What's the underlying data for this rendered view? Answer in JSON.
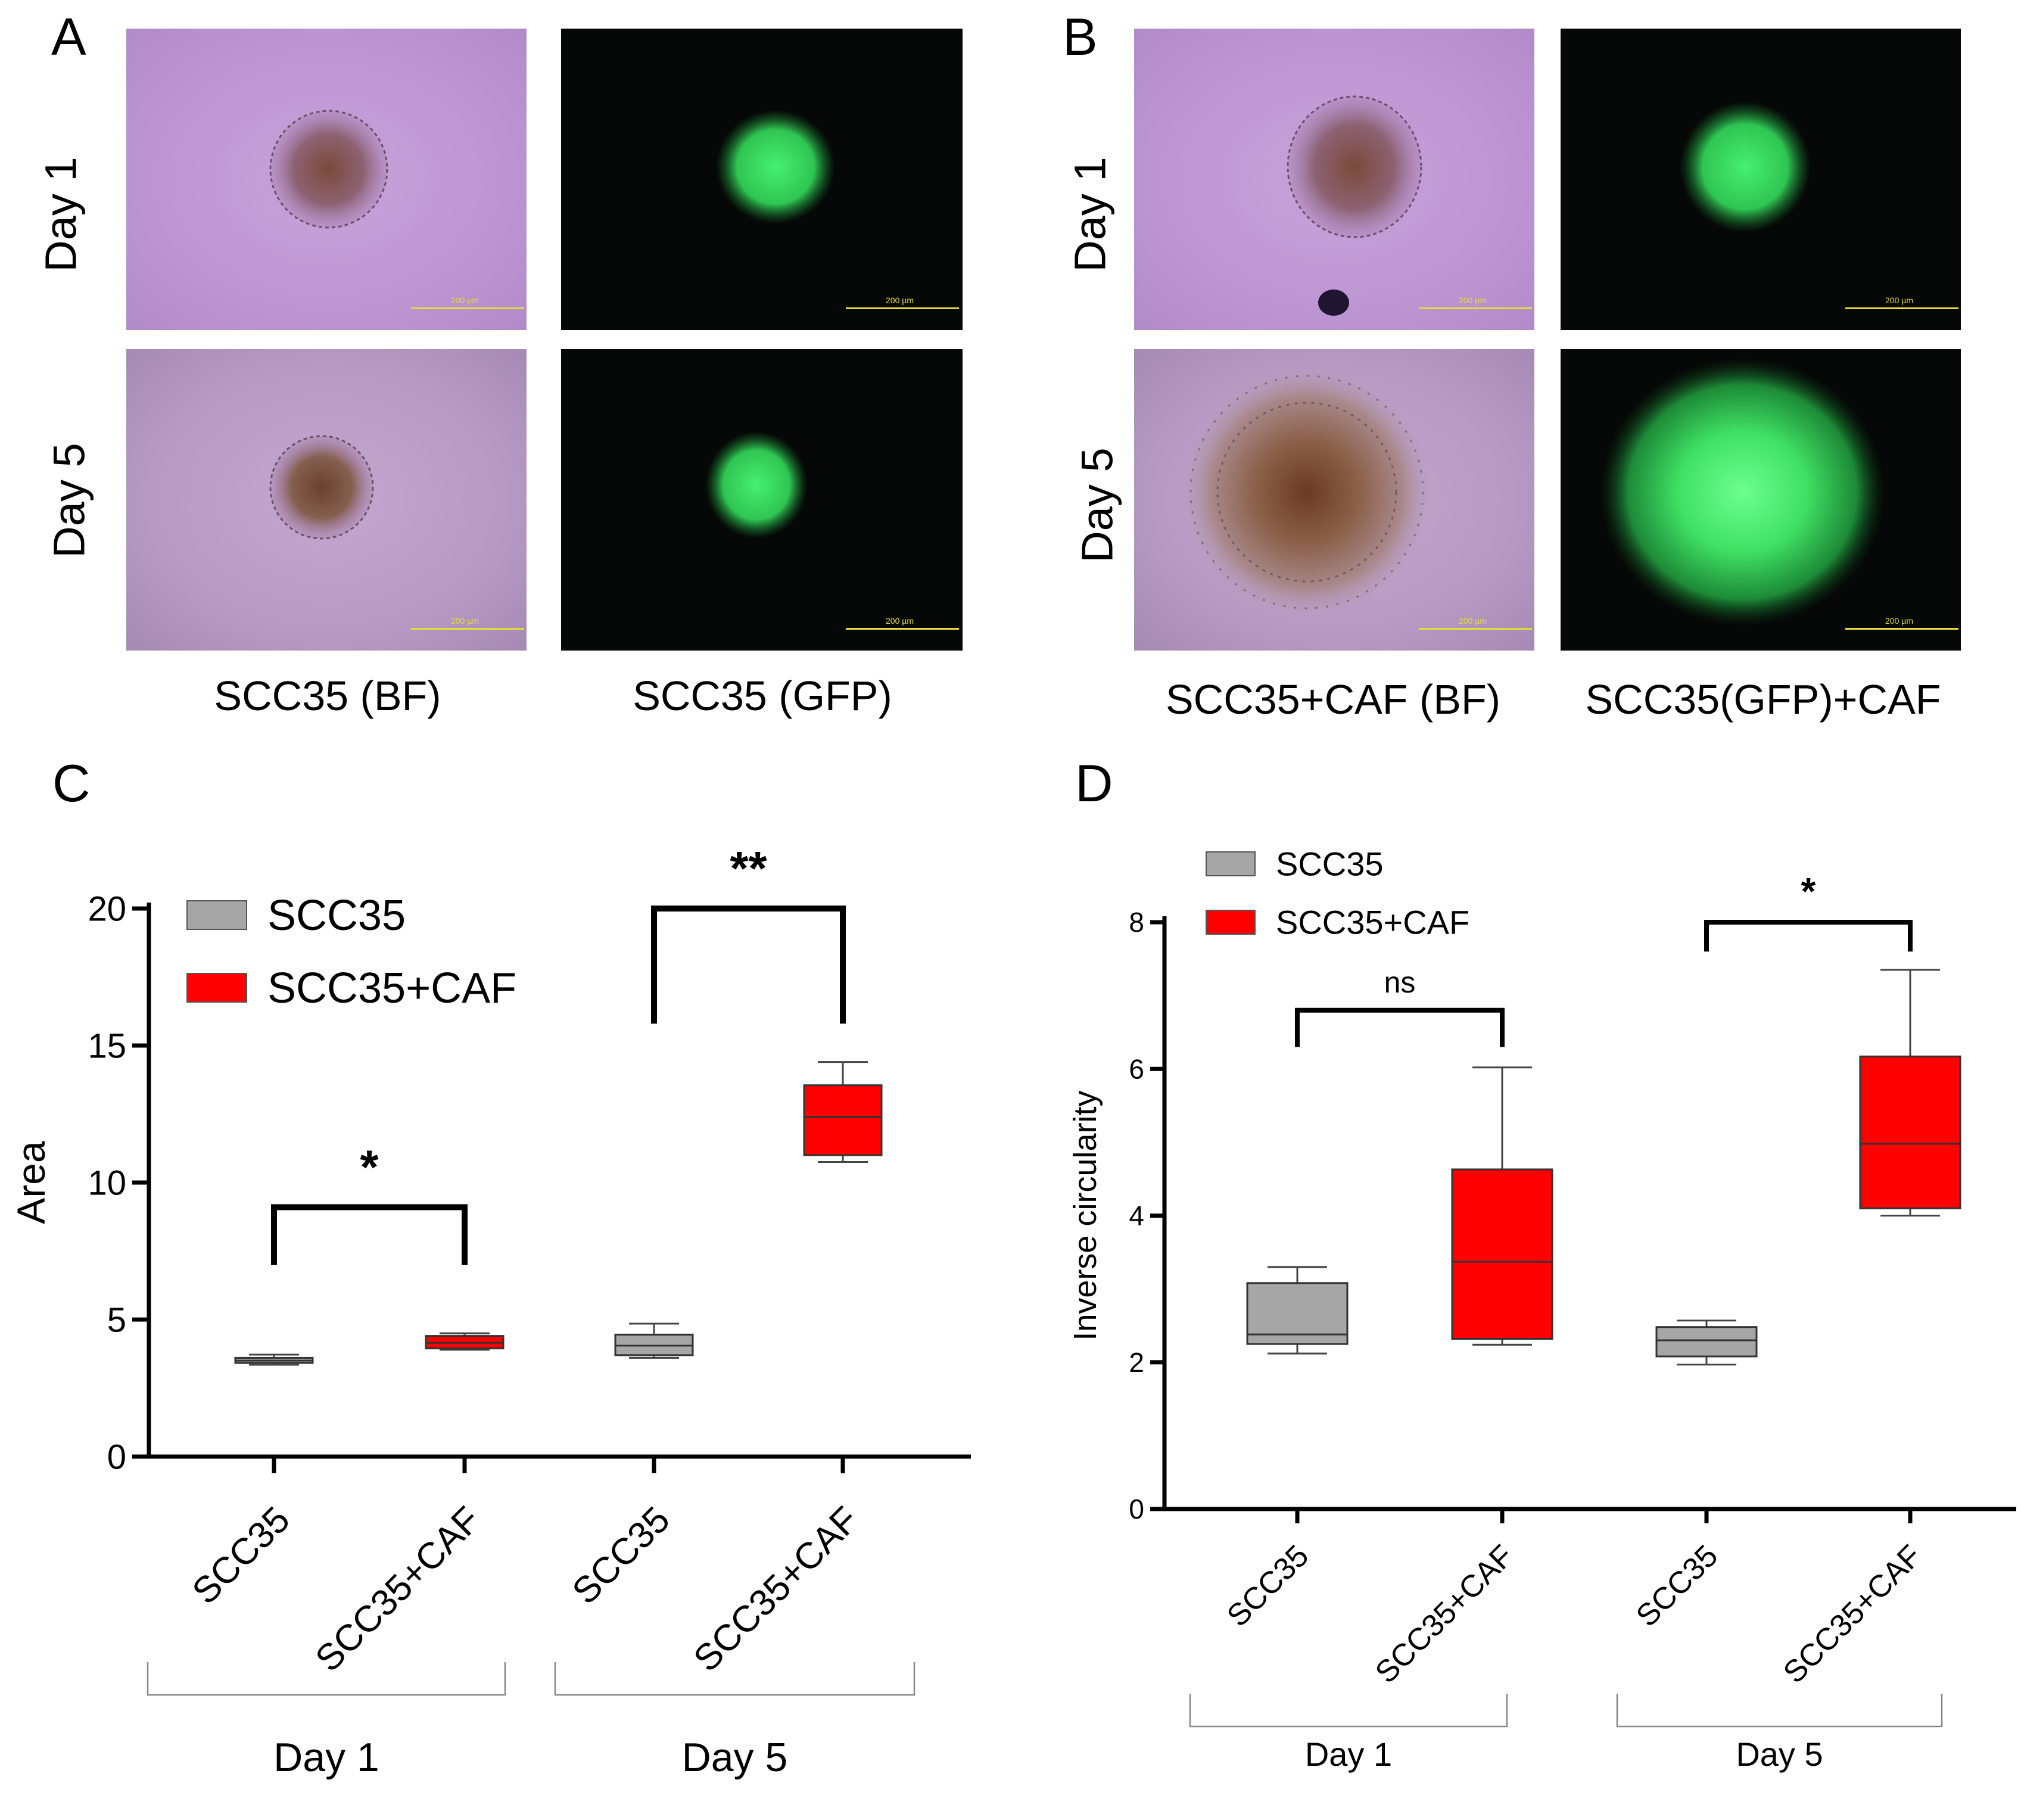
{
  "panels": {
    "A": {
      "letter": "A",
      "rows": [
        "Day 1",
        "Day 5"
      ],
      "columns": [
        "SCC35 (BF)",
        "SCC35 (GFP)"
      ],
      "scale_bar": "200 µm"
    },
    "B": {
      "letter": "B",
      "rows": [
        "Day 1",
        "Day 5"
      ],
      "columns": [
        "SCC35+CAF (BF)",
        "SCC35(GFP)+CAF"
      ],
      "scale_bar": "200 µm"
    }
  },
  "colors": {
    "scc35": "#a6a6a6",
    "scc35_caf": "#ff0000",
    "bf_bg": "#bf97d4",
    "gfp": "#33e05a"
  },
  "chart_data": [
    {
      "panel": "C",
      "type": "box",
      "ylabel": "Area",
      "ylim": [
        0,
        20
      ],
      "yticks": [
        0,
        5,
        10,
        15,
        20
      ],
      "legend": [
        {
          "name": "SCC35",
          "color": "#a6a6a6"
        },
        {
          "name": "SCC35+CAF",
          "color": "#ff0000"
        }
      ],
      "legend_position": "top-left",
      "categories": [
        "SCC35",
        "SCC35+CAF",
        "SCC35",
        "SCC35+CAF"
      ],
      "groups": [
        {
          "label": "Day 1",
          "members": [
            0,
            1
          ]
        },
        {
          "label": "Day 5",
          "members": [
            2,
            3
          ]
        }
      ],
      "boxes": [
        {
          "series": "SCC35",
          "min": 3.35,
          "q1": 3.42,
          "median": 3.5,
          "q3": 3.6,
          "max": 3.72
        },
        {
          "series": "SCC35+CAF",
          "min": 3.9,
          "q1": 3.95,
          "median": 4.15,
          "q3": 4.4,
          "max": 4.5
        },
        {
          "series": "SCC35",
          "min": 3.6,
          "q1": 3.7,
          "median": 4.05,
          "q3": 4.45,
          "max": 4.85
        },
        {
          "series": "SCC35+CAF",
          "min": 10.75,
          "q1": 11.0,
          "median": 12.4,
          "q3": 13.55,
          "max": 14.4
        }
      ],
      "significance": [
        {
          "from": 0,
          "to": 1,
          "label": "*"
        },
        {
          "from": 2,
          "to": 3,
          "label": "**"
        }
      ]
    },
    {
      "panel": "D",
      "type": "box",
      "ylabel": "Inverse circularity",
      "ylim": [
        0,
        8
      ],
      "yticks": [
        0,
        2,
        4,
        6,
        8
      ],
      "legend": [
        {
          "name": "SCC35",
          "color": "#a6a6a6"
        },
        {
          "name": "SCC35+CAF",
          "color": "#ff0000"
        }
      ],
      "legend_position": "top-left",
      "categories": [
        "SCC35",
        "SCC35+CAF",
        "SCC35",
        "SCC35+CAF"
      ],
      "groups": [
        {
          "label": "Day 1",
          "members": [
            0,
            1
          ]
        },
        {
          "label": "Day 5",
          "members": [
            2,
            3
          ]
        }
      ],
      "boxes": [
        {
          "series": "SCC35",
          "min": 2.12,
          "q1": 2.25,
          "median": 2.38,
          "q3": 3.08,
          "max": 3.3
        },
        {
          "series": "SCC35+CAF",
          "min": 2.24,
          "q1": 2.32,
          "median": 3.37,
          "q3": 4.63,
          "max": 6.02
        },
        {
          "series": "SCC35",
          "min": 1.97,
          "q1": 2.08,
          "median": 2.3,
          "q3": 2.48,
          "max": 2.57
        },
        {
          "series": "SCC35+CAF",
          "min": 4.0,
          "q1": 4.1,
          "median": 4.98,
          "q3": 6.17,
          "max": 7.35
        }
      ],
      "significance": [
        {
          "from": 0,
          "to": 1,
          "label": "ns"
        },
        {
          "from": 2,
          "to": 3,
          "label": "*"
        }
      ]
    }
  ]
}
